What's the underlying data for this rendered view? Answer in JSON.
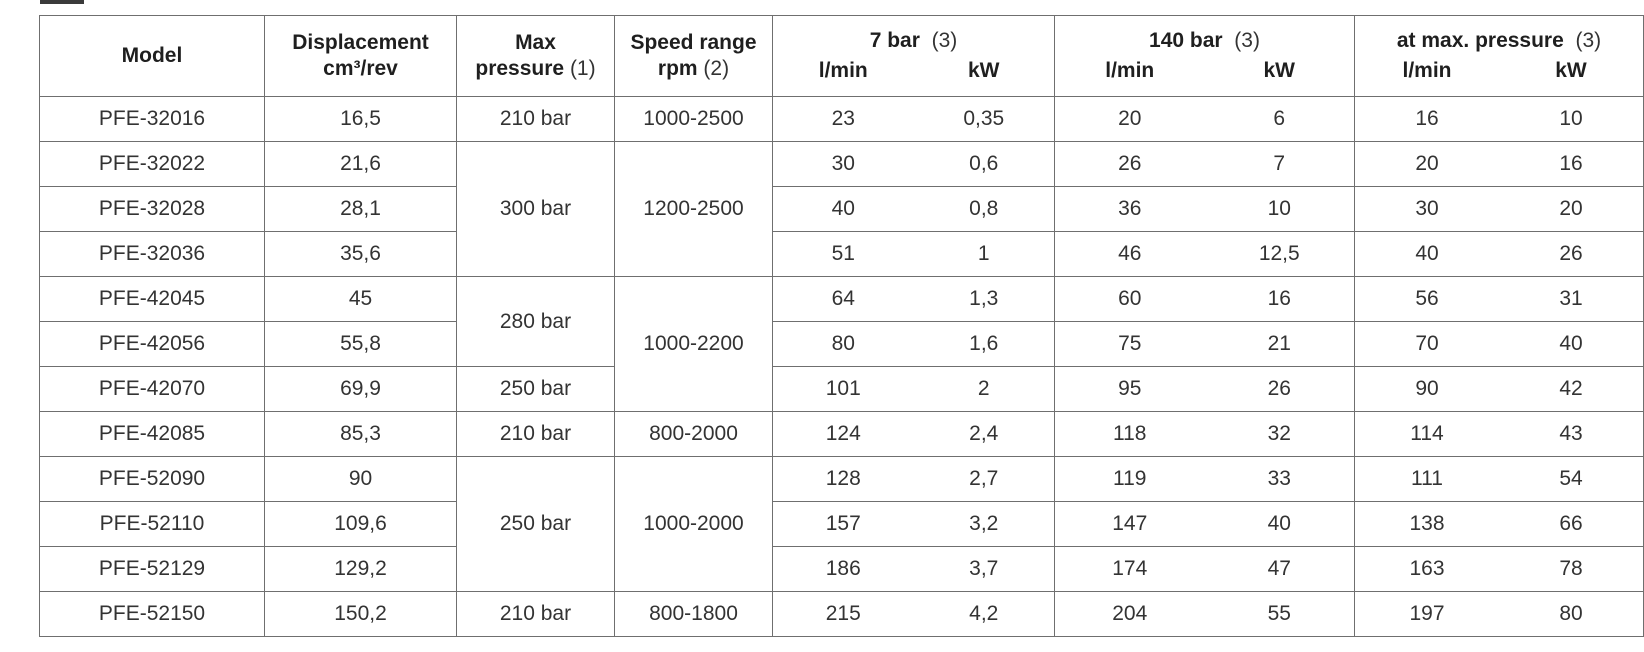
{
  "header": {
    "model": "Model",
    "displacement_line1": "Displacement",
    "displacement_line2": "cm³/rev",
    "maxp_line1": "Max",
    "maxp_line2": "pressure",
    "maxp_note": "(1)",
    "speed_line1": "Speed range",
    "speed_line2": "rpm",
    "speed_note": "(2)",
    "bar7": "7 bar",
    "bar7_note": "(3)",
    "bar140": "140 bar",
    "bar140_note": "(3)",
    "atmax": "at max. pressure",
    "atmax_note": "(3)",
    "unit_lmin": "l/min",
    "unit_kw": "kW"
  },
  "rows": [
    {
      "model": "PFE-32016",
      "disp": "16,5",
      "l7": "23",
      "kw7": "0,35",
      "l140": "20",
      "kw140": "6",
      "lmax": "16",
      "kwmax": "10"
    },
    {
      "model": "PFE-32022",
      "disp": "21,6",
      "l7": "30",
      "kw7": "0,6",
      "l140": "26",
      "kw140": "7",
      "lmax": "20",
      "kwmax": "16"
    },
    {
      "model": "PFE-32028",
      "disp": "28,1",
      "l7": "40",
      "kw7": "0,8",
      "l140": "36",
      "kw140": "10",
      "lmax": "30",
      "kwmax": "20"
    },
    {
      "model": "PFE-32036",
      "disp": "35,6",
      "l7": "51",
      "kw7": "1",
      "l140": "46",
      "kw140": "12,5",
      "lmax": "40",
      "kwmax": "26"
    },
    {
      "model": "PFE-42045",
      "disp": "45",
      "l7": "64",
      "kw7": "1,3",
      "l140": "60",
      "kw140": "16",
      "lmax": "56",
      "kwmax": "31"
    },
    {
      "model": "PFE-42056",
      "disp": "55,8",
      "l7": "80",
      "kw7": "1,6",
      "l140": "75",
      "kw140": "21",
      "lmax": "70",
      "kwmax": "40"
    },
    {
      "model": "PFE-42070",
      "disp": "69,9",
      "l7": "101",
      "kw7": "2",
      "l140": "95",
      "kw140": "26",
      "lmax": "90",
      "kwmax": "42"
    },
    {
      "model": "PFE-42085",
      "disp": "85,3",
      "l7": "124",
      "kw7": "2,4",
      "l140": "118",
      "kw140": "32",
      "lmax": "114",
      "kwmax": "43"
    },
    {
      "model": "PFE-52090",
      "disp": "90",
      "l7": "128",
      "kw7": "2,7",
      "l140": "119",
      "kw140": "33",
      "lmax": "111",
      "kwmax": "54"
    },
    {
      "model": "PFE-52110",
      "disp": "109,6",
      "l7": "157",
      "kw7": "3,2",
      "l140": "147",
      "kw140": "40",
      "lmax": "138",
      "kwmax": "66"
    },
    {
      "model": "PFE-52129",
      "disp": "129,2",
      "l7": "186",
      "kw7": "3,7",
      "l140": "174",
      "kw140": "47",
      "lmax": "163",
      "kwmax": "78"
    },
    {
      "model": "PFE-52150",
      "disp": "150,2",
      "l7": "215",
      "kw7": "4,2",
      "l140": "204",
      "kw140": "55",
      "lmax": "197",
      "kwmax": "80"
    }
  ],
  "pressure_groups": [
    "210 bar",
    "300 bar",
    "280 bar",
    "250 bar",
    "210 bar",
    "250 bar",
    "210 bar"
  ],
  "speed_groups": [
    "1000-2500",
    "1200-2500",
    "1000-2200",
    "800-2000",
    "1000-2000",
    "800-1800"
  ]
}
